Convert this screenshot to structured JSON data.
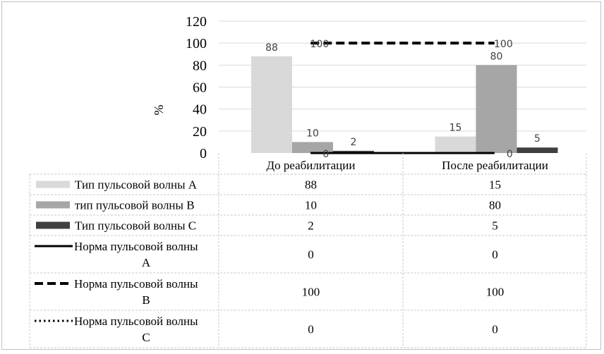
{
  "chart_data": {
    "type": "bar",
    "categories": [
      "До реабилитации",
      "После реабилитации"
    ],
    "ylabel": "%",
    "ylim": [
      0,
      120
    ],
    "yticks": [
      0,
      20,
      40,
      60,
      80,
      100,
      120
    ],
    "grid": true,
    "legend_placement": "data-table",
    "series": [
      {
        "name": "Тип пульсовой волны А",
        "kind": "bar",
        "color": "#d9d9d9",
        "values": [
          88,
          15
        ]
      },
      {
        "name": "тип пульсовой волны В",
        "kind": "bar",
        "color": "#a6a6a6",
        "values": [
          10,
          80
        ]
      },
      {
        "name": "Тип пульсовой волны С",
        "kind": "bar",
        "color": "#404040",
        "values": [
          2,
          5
        ]
      },
      {
        "name": "Норма пульсовой волны А",
        "kind": "line",
        "style": "solid",
        "color": "#000000",
        "values": [
          0,
          0
        ]
      },
      {
        "name": "Норма пульсовой волны В",
        "kind": "line",
        "style": "dashed",
        "color": "#000000",
        "values": [
          100,
          100
        ]
      },
      {
        "name": "Норма пульсовой волны С",
        "kind": "line",
        "style": "dotted",
        "color": "#000000",
        "values": [
          0,
          0
        ]
      }
    ]
  }
}
